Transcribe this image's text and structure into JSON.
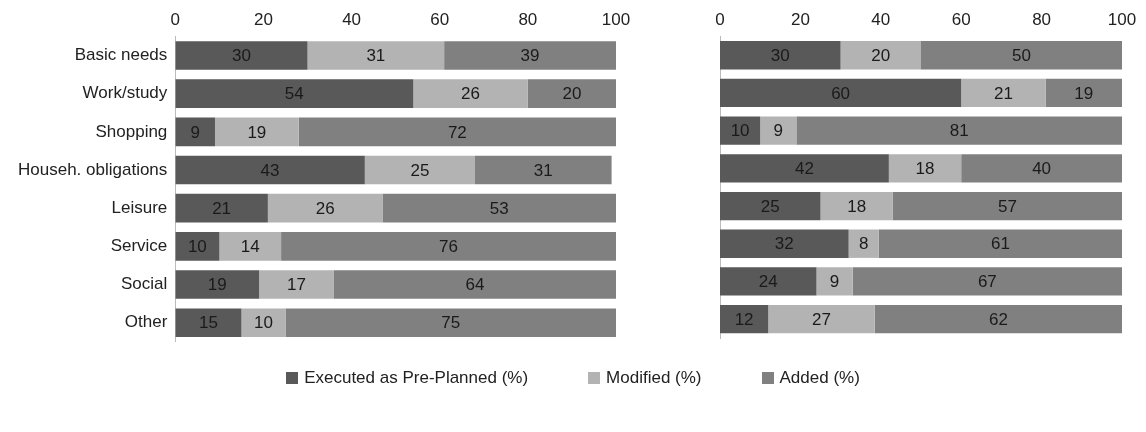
{
  "chart_data": [
    {
      "type": "bar",
      "orientation": "horizontal",
      "stacked": true,
      "categories": [
        "Basic needs",
        "Work/study",
        "Shopping",
        "Househ. obligations",
        "Leisure",
        "Service",
        "Social",
        "Other"
      ],
      "series": [
        {
          "name": "Executed as Pre-Planned (%)",
          "color": "#595959",
          "values": [
            30,
            54,
            9,
            43,
            21,
            10,
            19,
            15
          ]
        },
        {
          "name": "Modified (%)",
          "color": "#b3b3b3",
          "values": [
            31,
            26,
            19,
            25,
            26,
            14,
            17,
            10
          ]
        },
        {
          "name": "Added (%)",
          "color": "#808080",
          "values": [
            39,
            20,
            72,
            31,
            53,
            76,
            64,
            75
          ]
        }
      ],
      "xlim": [
        0,
        100
      ],
      "xticks": [
        0,
        20,
        40,
        60,
        80,
        100
      ],
      "grid": false,
      "data_labels": true,
      "legend": "bottom"
    },
    {
      "type": "bar",
      "orientation": "horizontal",
      "stacked": true,
      "categories": [
        null,
        null,
        null,
        null,
        null,
        null,
        null,
        null
      ],
      "series": [
        {
          "color": "#595959",
          "values": [
            30,
            60,
            10,
            42,
            25,
            32,
            24,
            12
          ]
        },
        {
          "color": "#b3b3b3",
          "values": [
            20,
            21,
            9,
            18,
            18,
            7.5,
            9,
            26.5
          ],
          "value_labels": [
            "20",
            "21",
            "9",
            "18",
            "18",
            "8",
            "9",
            "27"
          ]
        },
        {
          "color": "#808080",
          "values": [
            50,
            19,
            81,
            40,
            57,
            60.5,
            67,
            61.5
          ],
          "value_labels": [
            "50",
            "19",
            "81",
            "40",
            "57",
            "61",
            "67",
            "62"
          ]
        }
      ],
      "xlim": [
        0,
        100
      ],
      "xticks": [
        0,
        20,
        40,
        60,
        80,
        100
      ],
      "grid": false,
      "data_labels": true,
      "tick_labels": "x"
    }
  ]
}
